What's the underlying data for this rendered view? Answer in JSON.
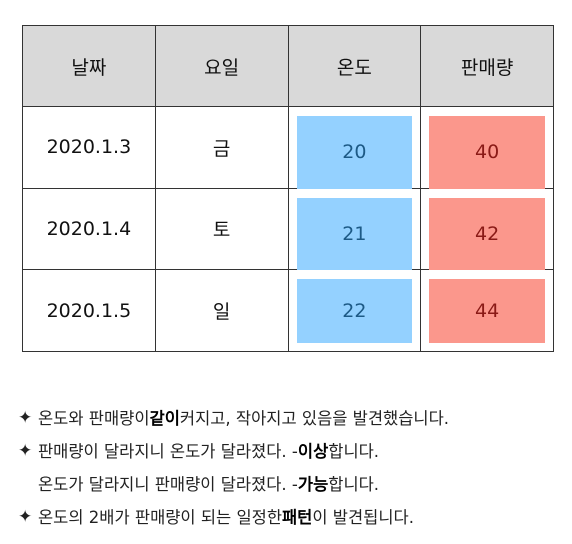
{
  "table": {
    "headers": [
      "날짜",
      "요일",
      "온도",
      "판매량"
    ],
    "rows": [
      {
        "date": "2020.1.3",
        "day": "금",
        "temp": "20",
        "sales": "40"
      },
      {
        "date": "2020.1.4",
        "day": "토",
        "temp": "21",
        "sales": "42"
      },
      {
        "date": "2020.1.5",
        "day": "일",
        "temp": "22",
        "sales": "44"
      }
    ],
    "colors": {
      "header_bg": "#d9d9d9",
      "temp_highlight": "#94d1ff",
      "sales_highlight": "#fb978c"
    }
  },
  "notes": {
    "bullet_icon": "✦",
    "line1": {
      "a": "온도와 판매량이 ",
      "bold": "같이",
      "b": " 커지고, 작아지고 있음을 발견했습니다."
    },
    "line2": {
      "a": "판매량이 달라지니 온도가 달라졌다. - ",
      "bold": "이상",
      "b": "합니다."
    },
    "line3": {
      "a": "온도가 달라지니 판매량이 달라졌다. -",
      "bold": "가능",
      "b": "합니다."
    },
    "line4": {
      "a": "온도의 2배가 판매량이 되는 일정한 ",
      "bold": "패턴",
      "b": "이 발견됩니다."
    }
  }
}
